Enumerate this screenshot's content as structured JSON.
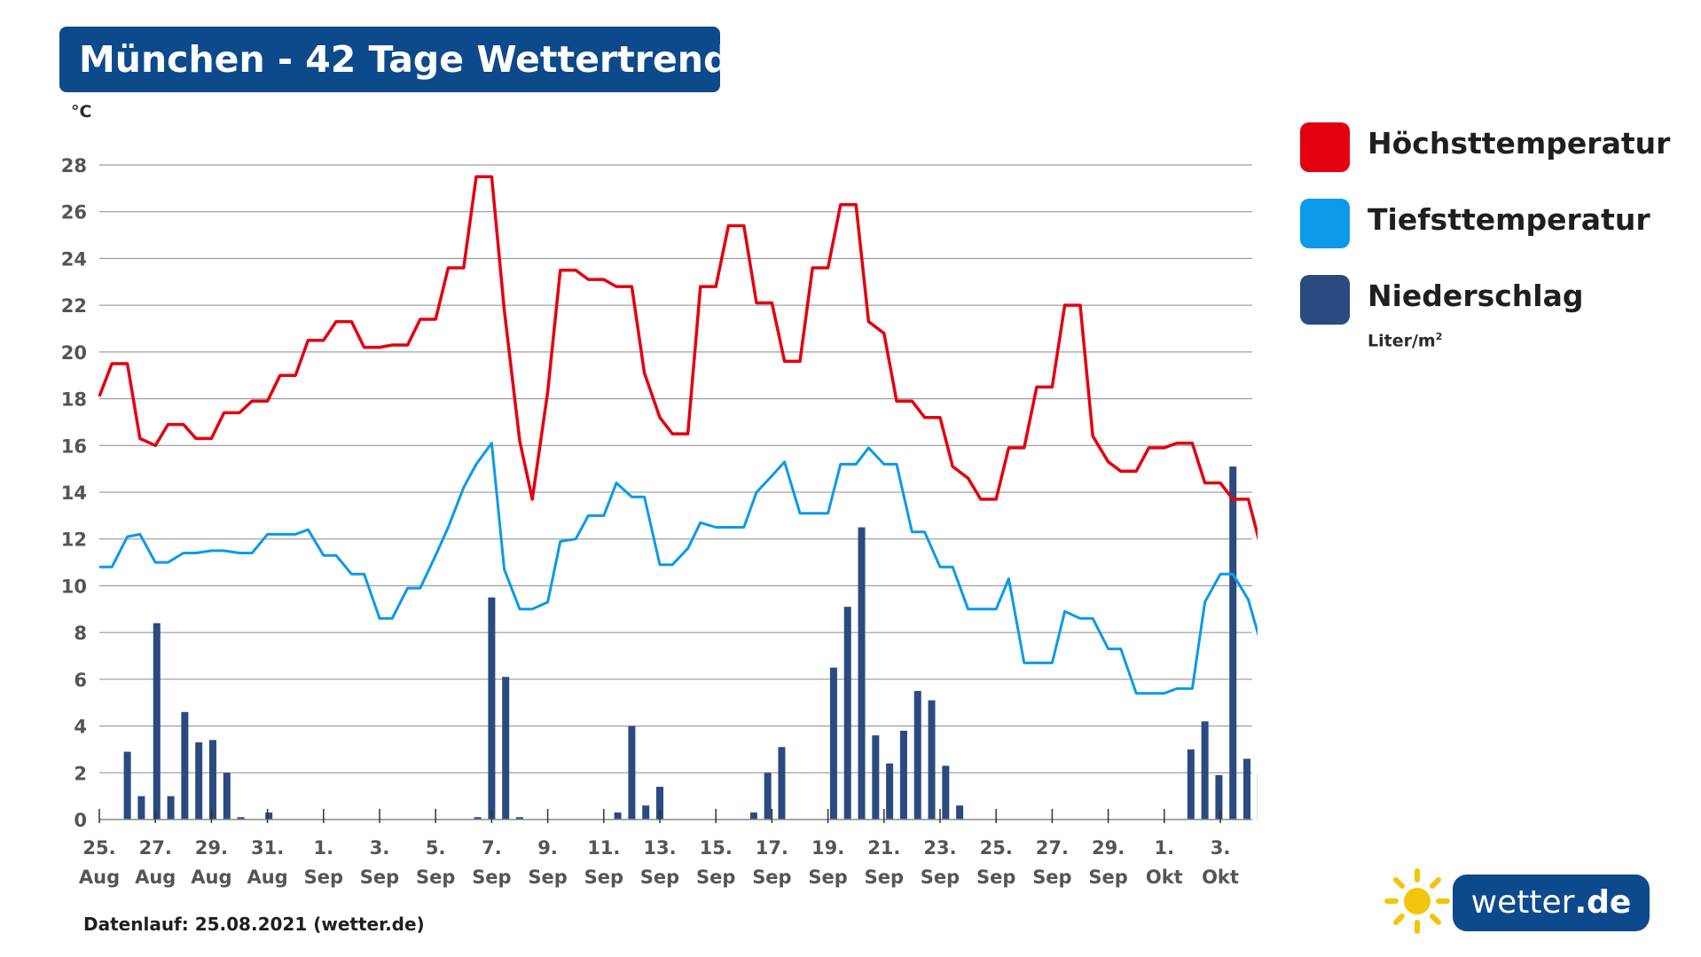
{
  "title": "München - 42 Tage Wettertrend",
  "footer": "Datenlauf: 25.08.2021 (wetter.de)",
  "logo": {
    "name": "wetter",
    "tld": ".de",
    "icon": "sun-icon"
  },
  "legend": {
    "items": [
      {
        "label": "Höchsttemperatur",
        "color": "#e3000f"
      },
      {
        "label": "Tiefsttemperatur",
        "color": "#0a9ae8"
      },
      {
        "label": "Niederschlag",
        "color": "#2a4a80"
      }
    ],
    "unit_base": "Liter/m",
    "unit_sup": "2"
  },
  "chart_data": {
    "type": "line",
    "ylabel": "°C",
    "ylim": [
      0,
      28
    ],
    "yticks": [
      0,
      2,
      4,
      6,
      8,
      10,
      12,
      14,
      16,
      18,
      20,
      22,
      24,
      26,
      28
    ],
    "grid": true,
    "legend_position": "right",
    "xlim": [
      0,
      40.5
    ],
    "xticks": [
      {
        "day": 0,
        "label": [
          "25.",
          "Aug"
        ]
      },
      {
        "day": 2,
        "label": [
          "27.",
          "Aug"
        ]
      },
      {
        "day": 4,
        "label": [
          "29.",
          "Aug"
        ]
      },
      {
        "day": 6,
        "label": [
          "31.",
          "Aug"
        ]
      },
      {
        "day": 8,
        "label": [
          "1.",
          "Sep"
        ]
      },
      {
        "day": 10,
        "label": [
          "3.",
          "Sep"
        ]
      },
      {
        "day": 12,
        "label": [
          "5.",
          "Sep"
        ]
      },
      {
        "day": 14,
        "label": [
          "7.",
          "Sep"
        ]
      },
      {
        "day": 16,
        "label": [
          "9.",
          "Sep"
        ]
      },
      {
        "day": 18,
        "label": [
          "11.",
          "Sep"
        ]
      },
      {
        "day": 20,
        "label": [
          "13.",
          "Sep"
        ]
      },
      {
        "day": 22,
        "label": [
          "15.",
          "Sep"
        ]
      },
      {
        "day": 24,
        "label": [
          "17.",
          "Sep"
        ]
      },
      {
        "day": 26,
        "label": [
          "19.",
          "Sep"
        ]
      },
      {
        "day": 28,
        "label": [
          "21.",
          "Sep"
        ]
      },
      {
        "day": 30,
        "label": [
          "23.",
          "Sep"
        ]
      },
      {
        "day": 32,
        "label": [
          "25.",
          "Sep"
        ]
      },
      {
        "day": 34,
        "label": [
          "27.",
          "Sep"
        ]
      },
      {
        "day": 36,
        "label": [
          "29.",
          "Sep"
        ]
      },
      {
        "day": 38,
        "label": [
          "1.",
          "Okt"
        ]
      },
      {
        "day": 40,
        "label": [
          "3.",
          "Okt"
        ]
      }
    ],
    "series": [
      {
        "name": "Höchsttemperatur",
        "color": "#e3000f",
        "points": [
          [
            0,
            18.1
          ],
          [
            0.45,
            19.5
          ],
          [
            1.0,
            19.5
          ],
          [
            1.45,
            16.3
          ],
          [
            2.0,
            16.0
          ],
          [
            2.45,
            16.9
          ],
          [
            3.0,
            16.9
          ],
          [
            3.45,
            16.3
          ],
          [
            4.0,
            16.3
          ],
          [
            4.45,
            17.4
          ],
          [
            5.0,
            17.4
          ],
          [
            5.45,
            17.9
          ],
          [
            6.0,
            17.9
          ],
          [
            6.45,
            19.0
          ],
          [
            7.0,
            19.0
          ],
          [
            7.45,
            20.5
          ],
          [
            8.0,
            20.5
          ],
          [
            8.45,
            21.3
          ],
          [
            9.0,
            21.3
          ],
          [
            9.45,
            20.2
          ],
          [
            10.0,
            20.2
          ],
          [
            10.45,
            20.3
          ],
          [
            11.0,
            20.3
          ],
          [
            11.45,
            21.4
          ],
          [
            12.0,
            21.4
          ],
          [
            12.45,
            23.6
          ],
          [
            13.0,
            23.6
          ],
          [
            13.45,
            27.5
          ],
          [
            14.0,
            27.5
          ],
          [
            14.45,
            21.8
          ],
          [
            15.0,
            16.2
          ],
          [
            15.45,
            13.7
          ],
          [
            16.0,
            18.3
          ],
          [
            16.45,
            23.5
          ],
          [
            17.0,
            23.5
          ],
          [
            17.45,
            23.1
          ],
          [
            18.0,
            23.1
          ],
          [
            18.45,
            22.8
          ],
          [
            19.0,
            22.8
          ],
          [
            19.45,
            19.1
          ],
          [
            20.0,
            17.2
          ],
          [
            20.45,
            16.5
          ],
          [
            21.0,
            16.5
          ],
          [
            21.45,
            22.8
          ],
          [
            22.0,
            22.8
          ],
          [
            22.45,
            25.4
          ],
          [
            23.0,
            25.4
          ],
          [
            23.45,
            22.1
          ],
          [
            24.0,
            22.1
          ],
          [
            24.45,
            19.6
          ],
          [
            25.0,
            19.6
          ],
          [
            25.45,
            23.6
          ],
          [
            26.0,
            23.6
          ],
          [
            26.45,
            26.3
          ],
          [
            27.0,
            26.3
          ],
          [
            27.45,
            21.3
          ],
          [
            28.0,
            20.8
          ],
          [
            28.45,
            17.9
          ],
          [
            29.0,
            17.9
          ],
          [
            29.45,
            17.2
          ],
          [
            30.0,
            17.2
          ],
          [
            30.45,
            15.1
          ],
          [
            31.0,
            14.6
          ],
          [
            31.45,
            13.7
          ],
          [
            32.0,
            13.7
          ],
          [
            32.45,
            15.9
          ],
          [
            33.0,
            15.9
          ],
          [
            33.45,
            18.5
          ],
          [
            34.0,
            18.5
          ],
          [
            34.45,
            22.0
          ],
          [
            35.0,
            22.0
          ],
          [
            35.45,
            16.4
          ],
          [
            36.0,
            15.3
          ],
          [
            36.45,
            14.9
          ],
          [
            37.0,
            14.9
          ],
          [
            37.45,
            15.9
          ],
          [
            38.0,
            15.9
          ],
          [
            38.45,
            16.1
          ],
          [
            39.0,
            16.1
          ],
          [
            39.45,
            14.4
          ],
          [
            40.0,
            14.4
          ],
          [
            40.45,
            13.7
          ],
          [
            41.0,
            13.7
          ],
          [
            41.5,
            11.4
          ]
        ]
      },
      {
        "name": "Tiefsttemperatur",
        "color": "#0a9ae8",
        "points": [
          [
            0,
            10.8
          ],
          [
            0.45,
            10.8
          ],
          [
            1.0,
            12.1
          ],
          [
            1.45,
            12.2
          ],
          [
            2.0,
            11.0
          ],
          [
            2.45,
            11.0
          ],
          [
            3.0,
            11.4
          ],
          [
            3.45,
            11.4
          ],
          [
            4.0,
            11.5
          ],
          [
            4.45,
            11.5
          ],
          [
            5.0,
            11.4
          ],
          [
            5.45,
            11.4
          ],
          [
            6.0,
            12.2
          ],
          [
            6.45,
            12.2
          ],
          [
            7.0,
            12.2
          ],
          [
            7.45,
            12.4
          ],
          [
            8.0,
            11.3
          ],
          [
            8.45,
            11.3
          ],
          [
            9.0,
            10.5
          ],
          [
            9.45,
            10.5
          ],
          [
            10.0,
            8.6
          ],
          [
            10.45,
            8.6
          ],
          [
            11.0,
            9.9
          ],
          [
            11.45,
            9.9
          ],
          [
            12.0,
            11.3
          ],
          [
            12.45,
            12.5
          ],
          [
            13.0,
            14.2
          ],
          [
            13.45,
            15.2
          ],
          [
            14.0,
            16.1
          ],
          [
            14.45,
            10.7
          ],
          [
            15.0,
            9.0
          ],
          [
            15.45,
            9.0
          ],
          [
            16.0,
            9.3
          ],
          [
            16.45,
            11.9
          ],
          [
            17.0,
            12.0
          ],
          [
            17.45,
            13.0
          ],
          [
            18.0,
            13.0
          ],
          [
            18.45,
            14.4
          ],
          [
            19.0,
            13.8
          ],
          [
            19.45,
            13.8
          ],
          [
            20.0,
            10.9
          ],
          [
            20.45,
            10.9
          ],
          [
            21.0,
            11.6
          ],
          [
            21.45,
            12.7
          ],
          [
            22.0,
            12.5
          ],
          [
            22.45,
            12.5
          ],
          [
            23.0,
            12.5
          ],
          [
            23.45,
            14.0
          ],
          [
            24.0,
            14.7
          ],
          [
            24.45,
            15.3
          ],
          [
            25.0,
            13.1
          ],
          [
            25.45,
            13.1
          ],
          [
            26.0,
            13.1
          ],
          [
            26.45,
            15.2
          ],
          [
            27.0,
            15.2
          ],
          [
            27.45,
            15.9
          ],
          [
            28.0,
            15.2
          ],
          [
            28.45,
            15.2
          ],
          [
            29.0,
            12.3
          ],
          [
            29.45,
            12.3
          ],
          [
            30.0,
            10.8
          ],
          [
            30.45,
            10.8
          ],
          [
            31.0,
            9.0
          ],
          [
            31.45,
            9.0
          ],
          [
            32.0,
            9.0
          ],
          [
            32.45,
            10.3
          ],
          [
            33.0,
            6.7
          ],
          [
            33.45,
            6.7
          ],
          [
            34.0,
            6.7
          ],
          [
            34.45,
            8.9
          ],
          [
            35.0,
            8.6
          ],
          [
            35.45,
            8.6
          ],
          [
            36.0,
            7.3
          ],
          [
            36.45,
            7.3
          ],
          [
            37.0,
            5.4
          ],
          [
            37.45,
            5.4
          ],
          [
            38.0,
            5.4
          ],
          [
            38.45,
            5.6
          ],
          [
            39.0,
            5.6
          ],
          [
            39.45,
            9.3
          ],
          [
            40.0,
            10.5
          ],
          [
            40.45,
            10.5
          ],
          [
            41.0,
            9.4
          ],
          [
            41.5,
            7.3
          ]
        ]
      },
      {
        "name": "Niederschlag",
        "color": "#2a4a80",
        "type": "bar",
        "unit": "Liter/m²",
        "bars": [
          [
            1.0,
            2.9
          ],
          [
            1.5,
            1.0
          ],
          [
            2.05,
            8.4
          ],
          [
            2.55,
            1.0
          ],
          [
            3.05,
            4.6
          ],
          [
            3.55,
            3.3
          ],
          [
            4.05,
            3.4
          ],
          [
            4.55,
            2.0
          ],
          [
            5.05,
            0.1
          ],
          [
            6.05,
            0.3
          ],
          [
            13.5,
            0.1
          ],
          [
            14.0,
            9.5
          ],
          [
            14.5,
            6.1
          ],
          [
            15.0,
            0.1
          ],
          [
            18.5,
            0.3
          ],
          [
            19.0,
            4.0
          ],
          [
            19.5,
            0.6
          ],
          [
            20.0,
            1.4
          ],
          [
            23.35,
            0.3
          ],
          [
            23.85,
            2.0
          ],
          [
            24.35,
            3.1
          ],
          [
            26.2,
            6.5
          ],
          [
            26.7,
            9.1
          ],
          [
            27.2,
            12.5
          ],
          [
            27.7,
            3.6
          ],
          [
            28.2,
            2.4
          ],
          [
            28.7,
            3.8
          ],
          [
            29.2,
            5.5
          ],
          [
            29.7,
            5.1
          ],
          [
            30.2,
            2.3
          ],
          [
            30.7,
            0.6
          ],
          [
            38.95,
            3.0
          ],
          [
            39.45,
            4.2
          ],
          [
            39.95,
            1.9
          ],
          [
            40.45,
            15.1
          ],
          [
            40.95,
            2.6
          ],
          [
            41.45,
            1.9
          ]
        ]
      }
    ]
  }
}
